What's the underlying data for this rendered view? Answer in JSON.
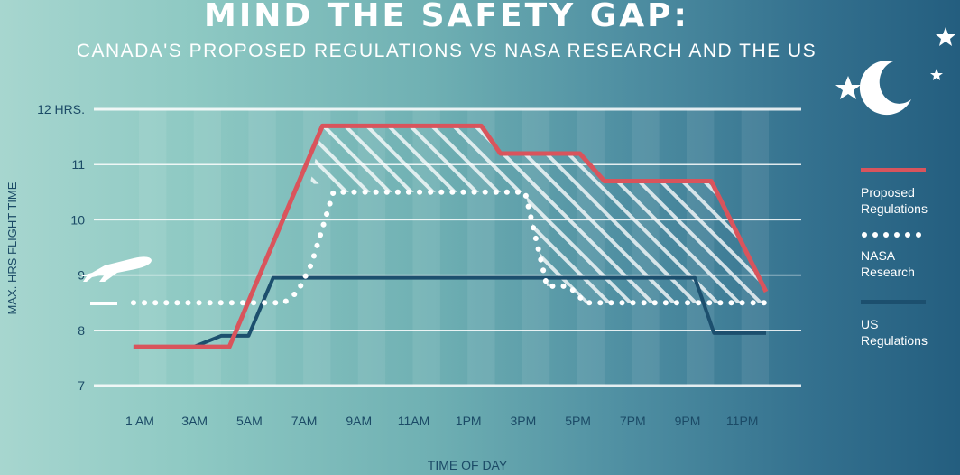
{
  "header": {
    "title": "MIND THE SAFETY GAP:",
    "subtitle": "CANADA'S PROPOSED REGULATIONS VS NASA RESEARCH AND THE US"
  },
  "colors": {
    "proposed": "#d9545c",
    "nasa": "#ffffff",
    "us": "#1c4f6e",
    "gridline": "#ffffff",
    "text": "#1b4a66"
  },
  "icons": [
    "airplane-icon",
    "star-icon",
    "moon-icon"
  ],
  "chart_data": {
    "type": "line",
    "title": "MIND THE SAFETY GAP:",
    "subtitle": "CANADA'S PROPOSED REGULATIONS VS NASA RESEARCH AND THE US",
    "xlabel": "TIME OF DAY",
    "ylabel": "MAX. HRS FLIGHT TIME",
    "xlim": [
      1,
      23.7
    ],
    "ylim": [
      7,
      12
    ],
    "x_ticks": [
      {
        "x": 1,
        "label": "1 AM"
      },
      {
        "x": 3,
        "label": "3AM"
      },
      {
        "x": 5,
        "label": "5AM"
      },
      {
        "x": 7,
        "label": "7AM"
      },
      {
        "x": 9,
        "label": "9AM"
      },
      {
        "x": 11,
        "label": "11AM"
      },
      {
        "x": 13,
        "label": "1PM"
      },
      {
        "x": 15,
        "label": "3PM"
      },
      {
        "x": 17,
        "label": "5PM"
      },
      {
        "x": 19,
        "label": "7PM"
      },
      {
        "x": 21,
        "label": "9PM"
      },
      {
        "x": 23,
        "label": "11PM"
      }
    ],
    "y_ticks": [
      {
        "y": 7,
        "label": "7"
      },
      {
        "y": 8,
        "label": "8"
      },
      {
        "y": 9,
        "label": "9"
      },
      {
        "y": 10,
        "label": "10"
      },
      {
        "y": 11,
        "label": "11"
      },
      {
        "y": 12,
        "label": "12 HRS."
      }
    ],
    "grid": true,
    "legend_position": "right",
    "shaded_gap": "between Proposed Regulations and NASA Research",
    "series": [
      {
        "name": "Proposed Regulations",
        "style": "solid",
        "points": [
          [
            0.8,
            7.7
          ],
          [
            4.3,
            7.7
          ],
          [
            7.7,
            11.7
          ],
          [
            13.5,
            11.7
          ],
          [
            14.2,
            11.2
          ],
          [
            17.1,
            11.2
          ],
          [
            18.0,
            10.7
          ],
          [
            21.9,
            10.7
          ],
          [
            23.9,
            8.7
          ]
        ]
      },
      {
        "name": "NASA Research",
        "style": "dotted",
        "points": [
          [
            0.8,
            8.5
          ],
          [
            6.3,
            8.5
          ],
          [
            6.8,
            8.7
          ],
          [
            7.3,
            9.2
          ],
          [
            8.1,
            10.5
          ],
          [
            15.1,
            10.5
          ],
          [
            15.9,
            8.8
          ],
          [
            16.7,
            8.8
          ],
          [
            17.3,
            8.5
          ],
          [
            23.9,
            8.5
          ]
        ]
      },
      {
        "name": "US Regulations",
        "style": "solid",
        "points": [
          [
            0.8,
            7.7
          ],
          [
            3.0,
            7.7
          ],
          [
            4.0,
            7.9
          ],
          [
            5.0,
            7.9
          ],
          [
            5.9,
            8.95
          ],
          [
            21.3,
            8.95
          ],
          [
            22.0,
            7.95
          ],
          [
            23.9,
            7.95
          ]
        ]
      }
    ]
  }
}
